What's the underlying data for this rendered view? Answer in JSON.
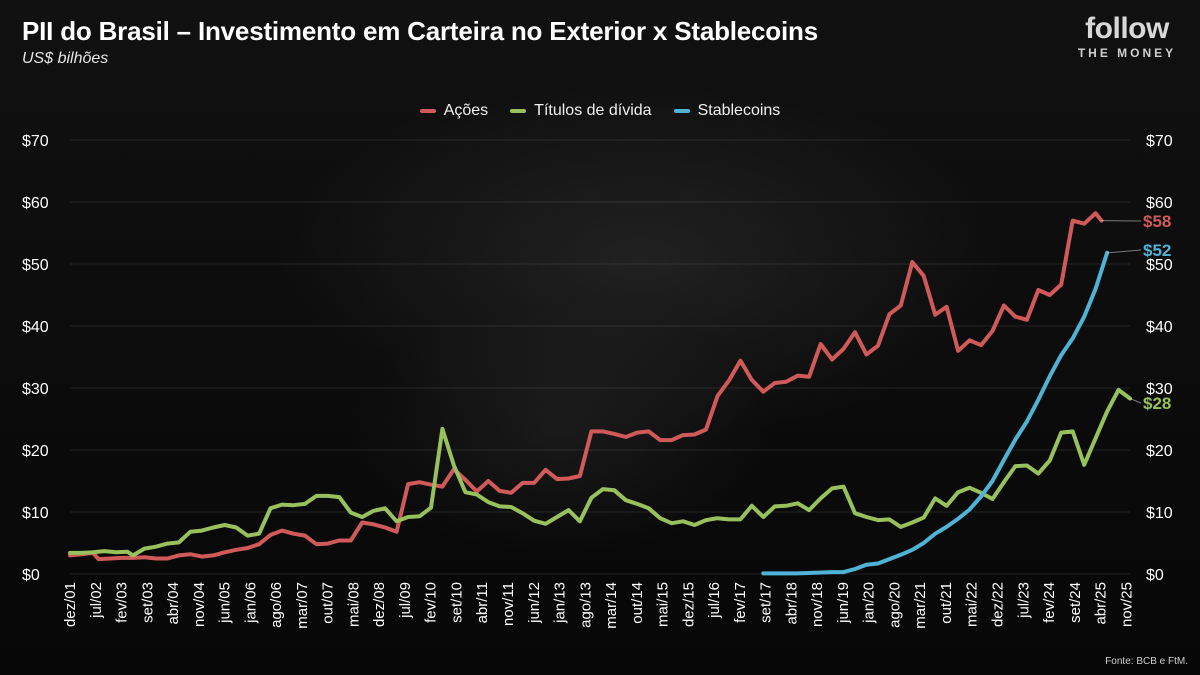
{
  "header": {
    "title": "PII do Brasil – Investimento em Carteira no Exterior x Stablecoins",
    "subtitle": "US$ bilhões"
  },
  "logo": {
    "main": "follow",
    "sub": "THE MONEY"
  },
  "source": "Fonte: BCB e FtM.",
  "colors": {
    "acoes": "#d05a5a",
    "titulos": "#98c05c",
    "stablecoins": "#4fb3d6",
    "background": "#0a0a0a"
  },
  "chart_data": {
    "type": "line",
    "title": "PII do Brasil – Investimento em Carteira no Exterior x Stablecoins",
    "ylabel": "US$ bilhões",
    "ylim": [
      0,
      70
    ],
    "yticks": [
      0,
      10,
      20,
      30,
      40,
      50,
      60,
      70
    ],
    "ytick_labels": [
      "$0",
      "$10",
      "$20",
      "$30",
      "$40",
      "$50",
      "$60",
      "$70"
    ],
    "y_axis": "both sides",
    "grid": true,
    "legend": "top-center",
    "x_labels": [
      "dez/01",
      "jul/02",
      "fev/03",
      "set/03",
      "abr/04",
      "nov/04",
      "jun/05",
      "jan/06",
      "ago/06",
      "mar/07",
      "out/07",
      "mai/08",
      "dez/08",
      "jul/09",
      "fev/10",
      "set/10",
      "abr/11",
      "nov/11",
      "jun/12",
      "jan/13",
      "ago/13",
      "mar/14",
      "out/14",
      "mai/15",
      "dez/15",
      "jul/16",
      "fev/17",
      "set/17",
      "abr/18",
      "nov/18",
      "jun/19",
      "jan/20",
      "ago/20",
      "mar/21",
      "out/21",
      "mai/22",
      "dez/22",
      "jul/23",
      "fev/24",
      "set/24",
      "abr/25",
      "nov/25"
    ],
    "series": [
      {
        "name": "Ações",
        "end_label": "$58",
        "values": [
          [
            0,
            3.0
          ],
          [
            2,
            3.2
          ],
          [
            4,
            3.4
          ],
          [
            5,
            2.4
          ],
          [
            7,
            2.5
          ],
          [
            9,
            2.6
          ],
          [
            11,
            2.6
          ],
          [
            13,
            2.7
          ],
          [
            15,
            2.5
          ],
          [
            17,
            2.5
          ],
          [
            19,
            3.0
          ],
          [
            21,
            3.2
          ],
          [
            23,
            2.8
          ],
          [
            25,
            3.0
          ],
          [
            27,
            3.5
          ],
          [
            29,
            3.9
          ],
          [
            31,
            4.2
          ],
          [
            33,
            4.8
          ],
          [
            35,
            6.3
          ],
          [
            37,
            7.0
          ],
          [
            39,
            6.5
          ],
          [
            41,
            6.2
          ],
          [
            43,
            4.8
          ],
          [
            45,
            4.9
          ],
          [
            47,
            5.4
          ],
          [
            49,
            5.4
          ],
          [
            51,
            8.3
          ],
          [
            53,
            8.0
          ],
          [
            55,
            7.5
          ],
          [
            57,
            6.8
          ],
          [
            59,
            14.5
          ],
          [
            61,
            14.8
          ],
          [
            63,
            14.4
          ],
          [
            65,
            14.1
          ],
          [
            67,
            16.9
          ],
          [
            69,
            15.2
          ],
          [
            71,
            13.3
          ],
          [
            73,
            15.0
          ],
          [
            75,
            13.4
          ],
          [
            77,
            13.1
          ],
          [
            79,
            14.7
          ],
          [
            81,
            14.7
          ],
          [
            83,
            16.8
          ],
          [
            85,
            15.3
          ],
          [
            87,
            15.4
          ],
          [
            89,
            15.8
          ],
          [
            91,
            23.0
          ],
          [
            93,
            23.0
          ],
          [
            95,
            22.6
          ],
          [
            97,
            22.1
          ],
          [
            99,
            22.8
          ],
          [
            101,
            23.0
          ],
          [
            103,
            21.6
          ],
          [
            105,
            21.6
          ],
          [
            107,
            22.4
          ],
          [
            109,
            22.5
          ],
          [
            111,
            23.3
          ],
          [
            113,
            28.7
          ],
          [
            115,
            31.2
          ],
          [
            117,
            34.4
          ],
          [
            119,
            31.3
          ],
          [
            121,
            29.4
          ],
          [
            123,
            30.8
          ],
          [
            125,
            31.0
          ],
          [
            127,
            32.0
          ],
          [
            129,
            31.8
          ],
          [
            131,
            37.1
          ],
          [
            133,
            34.6
          ],
          [
            135,
            36.3
          ],
          [
            137,
            39.0
          ],
          [
            139,
            35.4
          ],
          [
            141,
            36.8
          ],
          [
            143,
            41.9
          ],
          [
            145,
            43.3
          ],
          [
            147,
            50.3
          ],
          [
            149,
            48.1
          ],
          [
            151,
            41.8
          ],
          [
            153,
            43.1
          ],
          [
            155,
            36.0
          ],
          [
            157,
            37.7
          ],
          [
            159,
            36.9
          ],
          [
            161,
            39.2
          ],
          [
            163,
            43.3
          ],
          [
            165,
            41.5
          ],
          [
            167,
            41.0
          ],
          [
            169,
            45.8
          ],
          [
            171,
            45.0
          ],
          [
            173,
            46.7
          ],
          [
            175,
            57.0
          ],
          [
            177,
            56.5
          ],
          [
            179,
            58.2
          ],
          [
            180,
            57.0
          ]
        ]
      },
      {
        "name": "Títulos de dívida",
        "end_label": "$28",
        "values": [
          [
            0,
            3.4
          ],
          [
            2,
            3.4
          ],
          [
            4,
            3.5
          ],
          [
            6,
            3.7
          ],
          [
            8,
            3.5
          ],
          [
            10,
            3.6
          ],
          [
            11,
            3.0
          ],
          [
            13,
            4.1
          ],
          [
            15,
            4.4
          ],
          [
            17,
            4.9
          ],
          [
            19,
            5.1
          ],
          [
            21,
            6.8
          ],
          [
            23,
            7.0
          ],
          [
            25,
            7.5
          ],
          [
            27,
            7.9
          ],
          [
            29,
            7.5
          ],
          [
            31,
            6.2
          ],
          [
            33,
            6.5
          ],
          [
            35,
            10.6
          ],
          [
            37,
            11.2
          ],
          [
            39,
            11.1
          ],
          [
            41,
            11.3
          ],
          [
            43,
            12.6
          ],
          [
            45,
            12.6
          ],
          [
            47,
            12.4
          ],
          [
            49,
            9.9
          ],
          [
            51,
            9.2
          ],
          [
            53,
            10.2
          ],
          [
            55,
            10.6
          ],
          [
            57,
            8.5
          ],
          [
            59,
            9.2
          ],
          [
            61,
            9.3
          ],
          [
            63,
            10.7
          ],
          [
            65,
            23.4
          ],
          [
            67,
            17.5
          ],
          [
            69,
            13.2
          ],
          [
            71,
            12.8
          ],
          [
            73,
            11.6
          ],
          [
            75,
            10.9
          ],
          [
            77,
            10.8
          ],
          [
            79,
            9.8
          ],
          [
            81,
            8.6
          ],
          [
            83,
            8.1
          ],
          [
            85,
            9.2
          ],
          [
            87,
            10.3
          ],
          [
            89,
            8.5
          ],
          [
            91,
            12.3
          ],
          [
            93,
            13.7
          ],
          [
            95,
            13.5
          ],
          [
            97,
            11.9
          ],
          [
            99,
            11.3
          ],
          [
            101,
            10.6
          ],
          [
            103,
            9.0
          ],
          [
            105,
            8.2
          ],
          [
            107,
            8.5
          ],
          [
            109,
            7.9
          ],
          [
            111,
            8.7
          ],
          [
            113,
            9.0
          ],
          [
            115,
            8.8
          ],
          [
            117,
            8.8
          ],
          [
            119,
            11.0
          ],
          [
            121,
            9.2
          ],
          [
            123,
            10.9
          ],
          [
            125,
            11.0
          ],
          [
            127,
            11.4
          ],
          [
            129,
            10.3
          ],
          [
            131,
            12.2
          ],
          [
            133,
            13.8
          ],
          [
            135,
            14.1
          ],
          [
            137,
            9.8
          ],
          [
            139,
            9.2
          ],
          [
            141,
            8.7
          ],
          [
            143,
            8.8
          ],
          [
            145,
            7.6
          ],
          [
            147,
            8.3
          ],
          [
            149,
            9.1
          ],
          [
            151,
            12.2
          ],
          [
            153,
            11.0
          ],
          [
            155,
            13.2
          ],
          [
            157,
            13.9
          ],
          [
            159,
            13.1
          ],
          [
            161,
            12.1
          ],
          [
            163,
            14.8
          ],
          [
            165,
            17.4
          ],
          [
            167,
            17.5
          ],
          [
            169,
            16.2
          ],
          [
            171,
            18.3
          ],
          [
            173,
            22.8
          ],
          [
            175,
            23.0
          ],
          [
            177,
            17.6
          ],
          [
            179,
            21.9
          ],
          [
            181,
            26.2
          ],
          [
            183,
            29.7
          ],
          [
            185,
            28.3
          ]
        ]
      },
      {
        "name": "Stablecoins",
        "end_label": "$52",
        "values": [
          [
            121,
            0.1
          ],
          [
            124,
            0.1
          ],
          [
            127,
            0.1
          ],
          [
            130,
            0.2
          ],
          [
            133,
            0.3
          ],
          [
            135,
            0.3
          ],
          [
            137,
            0.8
          ],
          [
            139,
            1.5
          ],
          [
            141,
            1.7
          ],
          [
            143,
            2.4
          ],
          [
            145,
            3.1
          ],
          [
            147,
            3.9
          ],
          [
            149,
            5.0
          ],
          [
            151,
            6.5
          ],
          [
            153,
            7.6
          ],
          [
            155,
            8.9
          ],
          [
            157,
            10.4
          ],
          [
            159,
            12.5
          ],
          [
            161,
            15.0
          ],
          [
            163,
            18.4
          ],
          [
            165,
            21.7
          ],
          [
            167,
            24.6
          ],
          [
            169,
            28.1
          ],
          [
            171,
            31.9
          ],
          [
            173,
            35.3
          ],
          [
            175,
            38.0
          ],
          [
            177,
            41.5
          ],
          [
            179,
            46.0
          ],
          [
            181,
            51.8
          ]
        ]
      }
    ]
  }
}
